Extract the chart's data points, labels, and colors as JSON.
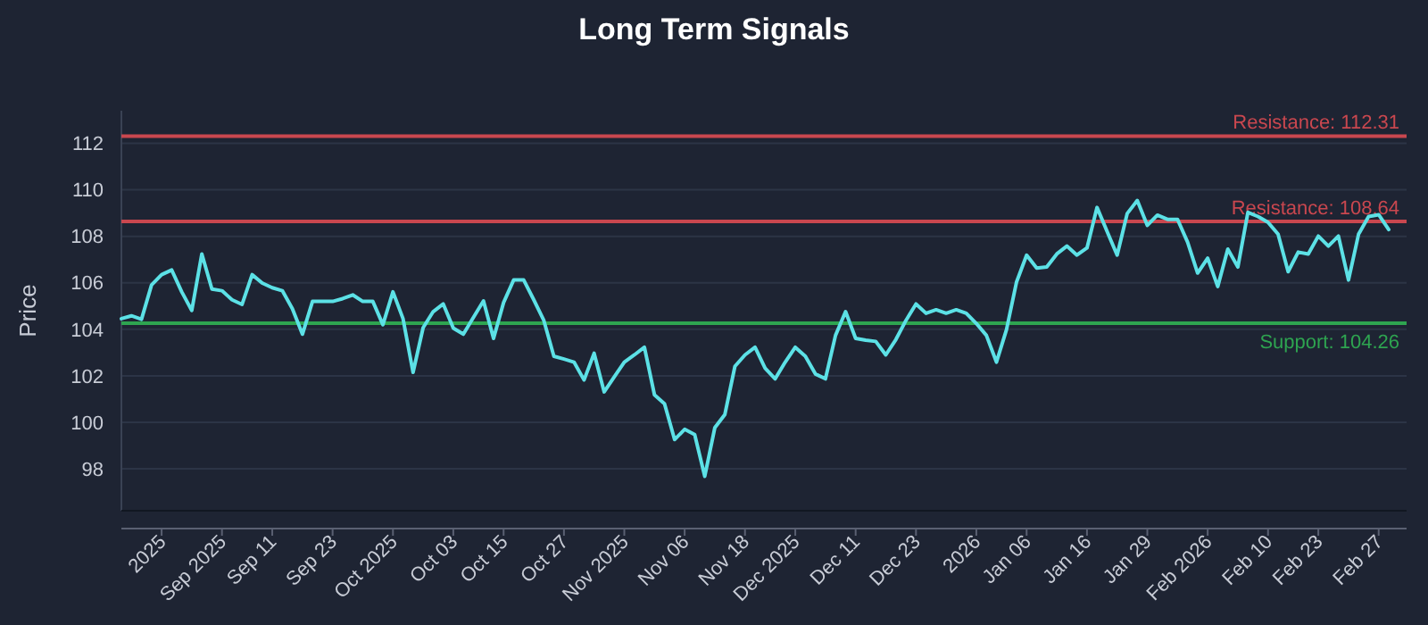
{
  "chart_data": {
    "type": "line",
    "title": "Long Term Signals",
    "ylabel": "Price",
    "categories": [
      null,
      null,
      null,
      null,
      "2025",
      null,
      null,
      null,
      null,
      null,
      "Sep 2025",
      null,
      null,
      null,
      null,
      "Sep 11",
      null,
      null,
      null,
      null,
      null,
      "Sep 23",
      null,
      null,
      null,
      null,
      null,
      "Oct 2025",
      null,
      null,
      null,
      null,
      null,
      "Oct 03",
      null,
      null,
      null,
      null,
      "Oct 15",
      null,
      null,
      null,
      null,
      null,
      "Oct 27",
      null,
      null,
      null,
      null,
      null,
      "Nov 2025",
      null,
      null,
      null,
      null,
      null,
      "Nov 06",
      null,
      null,
      null,
      null,
      null,
      "Nov 18",
      null,
      null,
      null,
      null,
      "Dec 2025",
      null,
      null,
      null,
      null,
      null,
      "Dec 11",
      null,
      null,
      null,
      null,
      null,
      "Dec 23",
      null,
      null,
      null,
      null,
      null,
      "2026",
      null,
      null,
      null,
      null,
      "Jan 06",
      null,
      null,
      null,
      null,
      null,
      "Jan 16",
      null,
      null,
      null,
      null,
      null,
      "Jan 29",
      null,
      null,
      null,
      null,
      null,
      "Feb 2026",
      null,
      null,
      null,
      null,
      null,
      "Feb 10",
      null,
      null,
      null,
      null,
      "Feb 23",
      null,
      null,
      null,
      null,
      null,
      "Feb 27",
      null
    ],
    "series": [
      {
        "color": "#5ce1e6",
        "values": [
          104.46,
          104.58,
          104.43,
          105.91,
          106.35,
          106.55,
          105.61,
          104.81,
          107.24,
          105.73,
          105.66,
          105.27,
          105.07,
          106.35,
          105.99,
          105.79,
          105.66,
          104.89,
          103.79,
          105.2,
          105.2,
          105.2,
          105.32,
          105.48,
          105.2,
          105.2,
          104.2,
          105.61,
          104.46,
          102.15,
          104.07,
          104.76,
          105.09,
          104.05,
          103.79,
          104.51,
          105.22,
          103.61,
          105.15,
          106.12,
          106.12,
          105.27,
          104.38,
          102.84,
          102.72,
          102.59,
          101.82,
          102.97,
          101.31,
          101.95,
          102.59,
          102.9,
          103.23,
          101.18,
          100.8,
          99.26,
          99.7,
          99.47,
          97.68,
          99.77,
          100.34,
          102.41,
          102.9,
          103.23,
          102.33,
          101.87,
          102.59,
          103.23,
          102.84,
          102.08,
          101.87,
          103.74,
          104.76,
          103.61,
          103.53,
          103.48,
          102.9,
          103.56,
          104.38,
          105.09,
          104.69,
          104.84,
          104.69,
          104.84,
          104.69,
          104.25,
          103.74,
          102.59,
          103.99,
          106.04,
          107.19,
          106.63,
          106.68,
          107.24,
          107.58,
          107.19,
          107.5,
          109.24,
          108.21,
          107.19,
          108.98,
          109.54,
          108.47,
          108.91,
          108.73,
          108.73,
          107.75,
          106.42,
          107.06,
          105.84,
          107.45,
          106.68,
          109.03,
          108.85,
          108.6,
          108.09,
          106.48,
          107.32,
          107.24,
          108.01,
          107.58,
          108.01,
          106.12,
          108.09,
          108.85,
          108.93,
          108.29
        ]
      }
    ],
    "ylim": [
      96.2,
      113.4
    ],
    "yticks": [
      98,
      100,
      102,
      104,
      106,
      108,
      110,
      112
    ],
    "grid": "y",
    "line_style": "solid",
    "ref_lines": [
      {
        "axis": "y",
        "value": 112.31,
        "label": "Resistance: 112.31",
        "color": "#c9474f"
      },
      {
        "axis": "y",
        "value": 108.64,
        "label": "Resistance: 108.64",
        "color": "#c9474f"
      },
      {
        "axis": "y",
        "value": 104.26,
        "label": "Support: 104.26",
        "color": "#2ea450"
      }
    ]
  }
}
